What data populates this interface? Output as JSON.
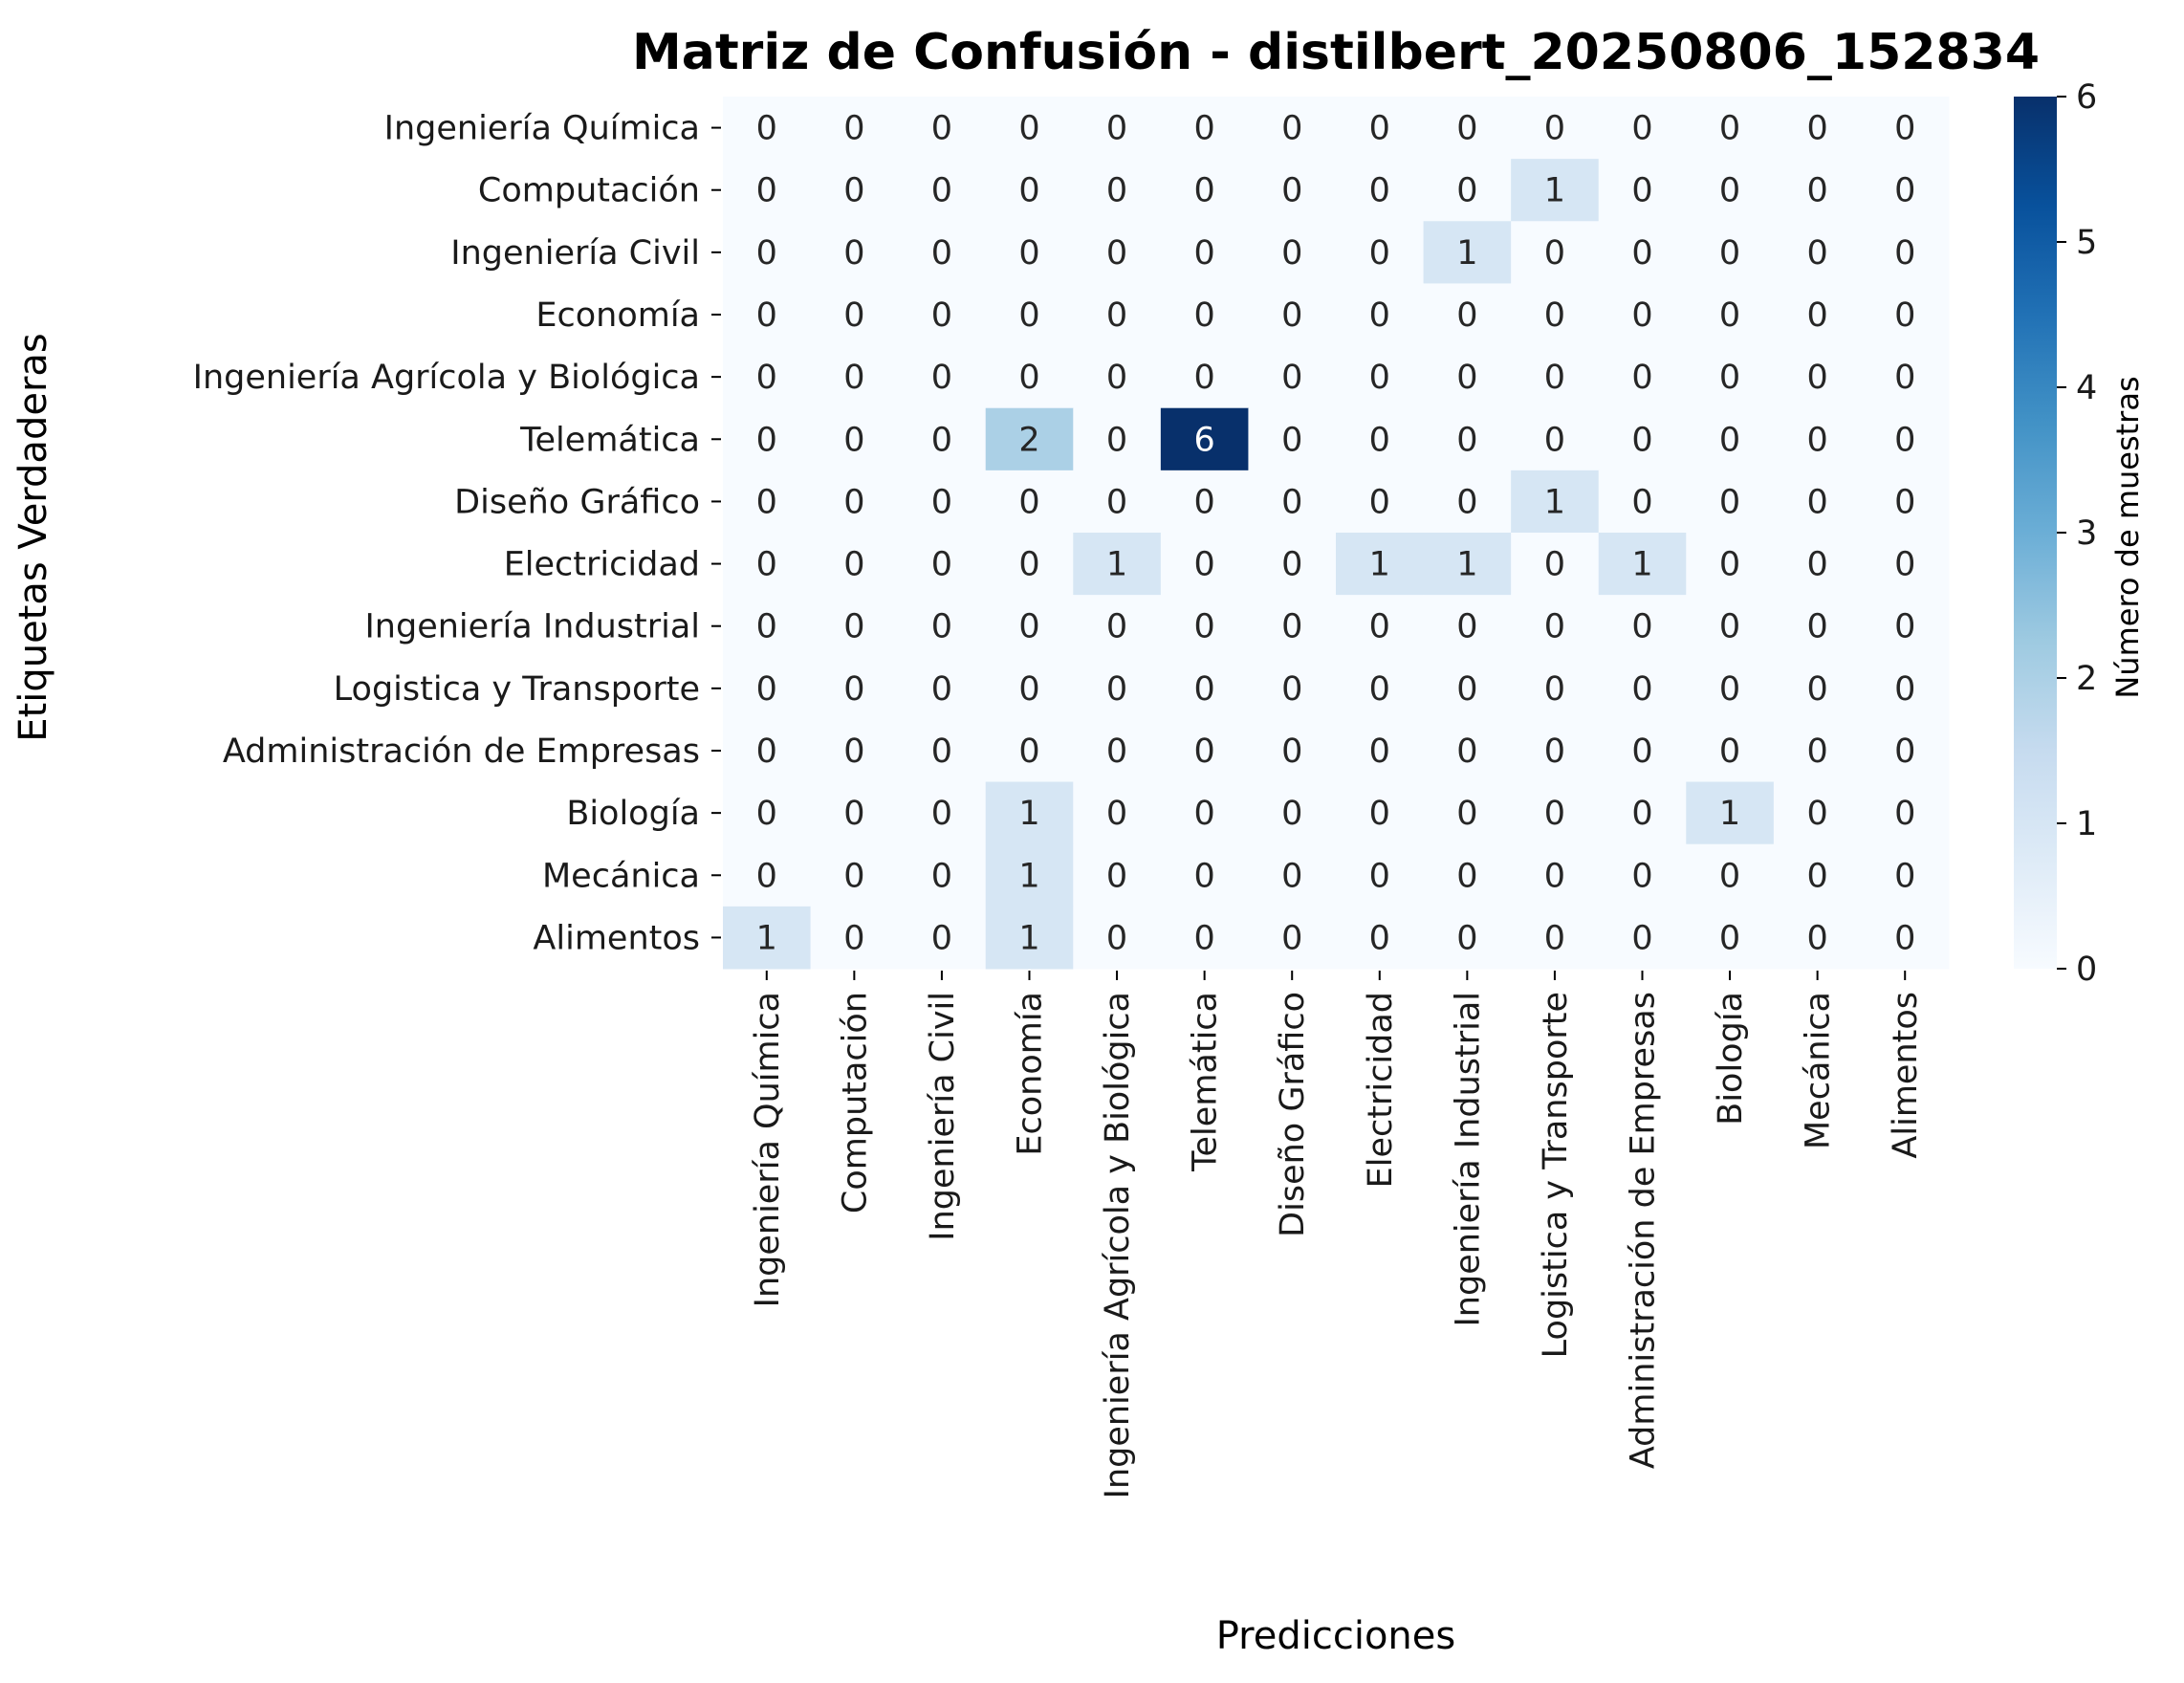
{
  "chart_data": {
    "type": "heatmap",
    "title": "Matriz de Confusión - distilbert_20250806_152834",
    "xlabel": "Predicciones",
    "ylabel": "Etiquetas Verdaderas",
    "row_labels": [
      "Ingeniería Química",
      "Computación",
      "Ingeniería  Civil",
      "Economía",
      "Ingeniería Agrícola y Biológica",
      "Telemática",
      "Diseño Gráfico",
      "Electricidad",
      "Ingeniería Industrial",
      "Logistica y Transporte",
      "Administración de Empresas",
      "Biología",
      "Mecánica",
      "Alimentos"
    ],
    "col_labels": [
      "Ingeniería Química",
      "Computación",
      "Ingeniería  Civil",
      "Economía",
      "Ingeniería Agrícola y Biológica",
      "Telemática",
      "Diseño Gráfico",
      "Electricidad",
      "Ingeniería Industrial",
      "Logistica y Transporte",
      "Administración de Empresas",
      "Biología",
      "Mecánica",
      "Alimentos"
    ],
    "values": [
      [
        0,
        0,
        0,
        0,
        0,
        0,
        0,
        0,
        0,
        0,
        0,
        0,
        0,
        0
      ],
      [
        0,
        0,
        0,
        0,
        0,
        0,
        0,
        0,
        0,
        1,
        0,
        0,
        0,
        0
      ],
      [
        0,
        0,
        0,
        0,
        0,
        0,
        0,
        0,
        1,
        0,
        0,
        0,
        0,
        0
      ],
      [
        0,
        0,
        0,
        0,
        0,
        0,
        0,
        0,
        0,
        0,
        0,
        0,
        0,
        0
      ],
      [
        0,
        0,
        0,
        0,
        0,
        0,
        0,
        0,
        0,
        0,
        0,
        0,
        0,
        0
      ],
      [
        0,
        0,
        0,
        2,
        0,
        6,
        0,
        0,
        0,
        0,
        0,
        0,
        0,
        0
      ],
      [
        0,
        0,
        0,
        0,
        0,
        0,
        0,
        0,
        0,
        1,
        0,
        0,
        0,
        0
      ],
      [
        0,
        0,
        0,
        0,
        1,
        0,
        0,
        1,
        1,
        0,
        1,
        0,
        0,
        0
      ],
      [
        0,
        0,
        0,
        0,
        0,
        0,
        0,
        0,
        0,
        0,
        0,
        0,
        0,
        0
      ],
      [
        0,
        0,
        0,
        0,
        0,
        0,
        0,
        0,
        0,
        0,
        0,
        0,
        0,
        0
      ],
      [
        0,
        0,
        0,
        0,
        0,
        0,
        0,
        0,
        0,
        0,
        0,
        0,
        0,
        0
      ],
      [
        0,
        0,
        0,
        1,
        0,
        0,
        0,
        0,
        0,
        0,
        0,
        1,
        0,
        0
      ],
      [
        0,
        0,
        0,
        1,
        0,
        0,
        0,
        0,
        0,
        0,
        0,
        0,
        0,
        0
      ],
      [
        1,
        0,
        0,
        1,
        0,
        0,
        0,
        0,
        0,
        0,
        0,
        0,
        0,
        0
      ]
    ],
    "colorbar": {
      "label": "Número de muestras",
      "range": [
        0,
        6
      ],
      "ticks": [
        "0",
        "1",
        "2",
        "3",
        "4",
        "5",
        "6"
      ],
      "colormap": "Blues",
      "color_low": "#f7fbff",
      "color_high": "#08306b"
    },
    "annotations": true,
    "grid": false
  }
}
